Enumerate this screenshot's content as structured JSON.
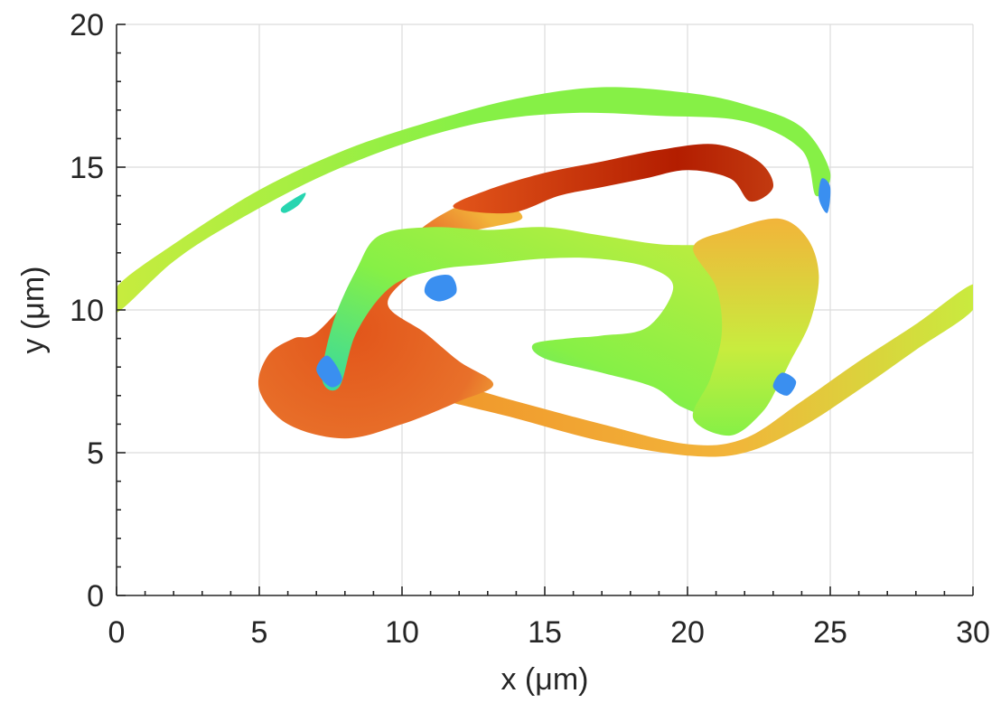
{
  "chart_data": {
    "type": "other",
    "xlabel": "x (μm)",
    "ylabel": "y (μm)",
    "xlim": [
      0,
      30
    ],
    "ylim": [
      0,
      20
    ],
    "x_ticks": [
      0,
      5,
      10,
      15,
      20,
      25,
      30
    ],
    "y_ticks": [
      0,
      5,
      10,
      15,
      20
    ],
    "x_tick_labels": [
      "0",
      "5",
      "10",
      "15",
      "20",
      "25",
      "30"
    ],
    "y_tick_labels": [
      "0",
      "5",
      "10",
      "15",
      "20"
    ],
    "grid": true,
    "colormap": "jet",
    "colors": {
      "deep_red": "#b31d00",
      "orange_red": "#e2551a",
      "orange": "#f0952a",
      "amber": "#f2b43a",
      "yellow_green": "#c8ec3e",
      "green": "#86f046",
      "cyan": "#27d5b0",
      "blue": "#3a8ff0"
    },
    "regions": [
      {
        "name": "upper-arc",
        "color_key": "green",
        "path": [
          [
            0,
            10.8
          ],
          [
            2,
            12.3
          ],
          [
            5,
            14.2
          ],
          [
            8,
            15.6
          ],
          [
            11,
            16.6
          ],
          [
            14,
            17.4
          ],
          [
            17,
            17.8
          ],
          [
            20,
            17.6
          ],
          [
            22,
            17.2
          ],
          [
            24,
            16.4
          ],
          [
            25,
            14.8
          ],
          [
            24.5,
            14.0
          ],
          [
            24,
            15.6
          ],
          [
            22,
            16.6
          ],
          [
            19,
            16.8
          ],
          [
            16,
            16.9
          ],
          [
            13,
            16.6
          ],
          [
            10,
            15.8
          ],
          [
            7,
            14.6
          ],
          [
            4,
            13.0
          ],
          [
            2,
            11.7
          ],
          [
            0,
            9.9
          ]
        ]
      },
      {
        "name": "upper-arc-tip",
        "color_key": "cyan",
        "path": [
          [
            5.8,
            13.6
          ],
          [
            6.6,
            14.1
          ],
          [
            6.4,
            13.7
          ],
          [
            5.9,
            13.4
          ]
        ]
      },
      {
        "name": "lower-arc",
        "color_key": "amber",
        "path": [
          [
            11,
            7.6
          ],
          [
            14,
            6.8
          ],
          [
            17,
            6.0
          ],
          [
            20,
            5.3
          ],
          [
            22,
            5.5
          ],
          [
            24,
            6.8
          ],
          [
            26,
            8.2
          ],
          [
            28,
            9.5
          ],
          [
            30,
            10.9
          ],
          [
            30,
            10.0
          ],
          [
            28,
            8.6
          ],
          [
            26,
            7.2
          ],
          [
            24,
            5.9
          ],
          [
            22,
            5.0
          ],
          [
            20,
            4.9
          ],
          [
            17,
            5.4
          ],
          [
            14,
            6.2
          ],
          [
            11,
            7.0
          ]
        ]
      },
      {
        "name": "red-lobe",
        "color_key": "orange_red",
        "path": [
          [
            7,
            9.2
          ],
          [
            8.5,
            10.8
          ],
          [
            10,
            12.3
          ],
          [
            11.5,
            13.4
          ],
          [
            13,
            13.9
          ],
          [
            14.2,
            13.2
          ],
          [
            12,
            12.6
          ],
          [
            10.5,
            11.4
          ],
          [
            9.5,
            10.2
          ],
          [
            10.8,
            9.2
          ],
          [
            12,
            8.2
          ],
          [
            13.2,
            7.4
          ],
          [
            12,
            6.8
          ],
          [
            10,
            6.0
          ],
          [
            8,
            5.5
          ],
          [
            6,
            6.0
          ],
          [
            5,
            7.2
          ],
          [
            5.3,
            8.4
          ],
          [
            6.2,
            9.0
          ]
        ]
      },
      {
        "name": "top-red-band",
        "color_key": "deep_red",
        "path": [
          [
            11.8,
            13.6
          ],
          [
            13,
            14.2
          ],
          [
            15,
            14.8
          ],
          [
            17,
            15.2
          ],
          [
            19,
            15.6
          ],
          [
            21,
            15.8
          ],
          [
            22.5,
            15.2
          ],
          [
            23,
            14.3
          ],
          [
            22.2,
            13.8
          ],
          [
            21.5,
            14.6
          ],
          [
            20,
            14.9
          ],
          [
            18.5,
            14.6
          ],
          [
            17,
            14.3
          ],
          [
            15.5,
            14.0
          ],
          [
            13.8,
            13.4
          ]
        ]
      },
      {
        "name": "central-ring",
        "color_key": "green",
        "path": [
          [
            9.2,
            12.6
          ],
          [
            11,
            12.9
          ],
          [
            13,
            12.8
          ],
          [
            15,
            12.9
          ],
          [
            17,
            12.6
          ],
          [
            19,
            12.3
          ],
          [
            21,
            12.2
          ],
          [
            22,
            11.6
          ],
          [
            22.6,
            10.8
          ],
          [
            22.3,
            9.4
          ],
          [
            22.6,
            8.2
          ],
          [
            22.2,
            7.0
          ],
          [
            21,
            6.3
          ],
          [
            19.8,
            6.6
          ],
          [
            18.8,
            7.3
          ],
          [
            17,
            7.8
          ],
          [
            15,
            8.3
          ],
          [
            14.6,
            8.8
          ],
          [
            15.8,
            9.0
          ],
          [
            17,
            9.1
          ],
          [
            18.6,
            9.4
          ],
          [
            19.5,
            10.8
          ],
          [
            18.6,
            11.5
          ],
          [
            16.8,
            11.8
          ],
          [
            15,
            11.8
          ],
          [
            13,
            11.6
          ],
          [
            11.2,
            11.4
          ],
          [
            9.6,
            10.8
          ],
          [
            8.4,
            9.2
          ],
          [
            7.8,
            7.3
          ],
          [
            7.2,
            7.6
          ],
          [
            7.6,
            9.6
          ],
          [
            8.4,
            11.4
          ]
        ]
      },
      {
        "name": "right-column",
        "color_key": "amber",
        "path": [
          [
            20.2,
            12.2
          ],
          [
            21.5,
            12.8
          ],
          [
            23.2,
            13.2
          ],
          [
            24.2,
            12.5
          ],
          [
            24.6,
            11.2
          ],
          [
            24.3,
            9.6
          ],
          [
            23.6,
            8.2
          ],
          [
            23.2,
            7.4
          ],
          [
            22.6,
            6.4
          ],
          [
            21.5,
            5.6
          ],
          [
            20.2,
            6.2
          ],
          [
            20.8,
            7.6
          ],
          [
            21.2,
            9.2
          ],
          [
            21,
            10.8
          ]
        ]
      },
      {
        "name": "left-blue-tip",
        "color_key": "blue",
        "path": [
          [
            7.0,
            7.9
          ],
          [
            7.5,
            7.3
          ],
          [
            7.9,
            7.6
          ],
          [
            7.4,
            8.4
          ]
        ]
      },
      {
        "name": "mid-blue-tip",
        "color_key": "blue",
        "path": [
          [
            10.8,
            10.6
          ],
          [
            11.3,
            10.3
          ],
          [
            11.9,
            10.6
          ],
          [
            11.7,
            11.2
          ],
          [
            11.0,
            11.1
          ]
        ]
      },
      {
        "name": "right-blue-tip",
        "color_key": "blue",
        "path": [
          [
            23.0,
            7.3
          ],
          [
            23.5,
            7.0
          ],
          [
            23.8,
            7.5
          ],
          [
            23.3,
            7.8
          ]
        ]
      },
      {
        "name": "top-right-blue-tip",
        "color_key": "blue",
        "path": [
          [
            24.6,
            13.9
          ],
          [
            24.9,
            13.4
          ],
          [
            25.0,
            14.3
          ],
          [
            24.7,
            14.6
          ]
        ]
      }
    ]
  }
}
